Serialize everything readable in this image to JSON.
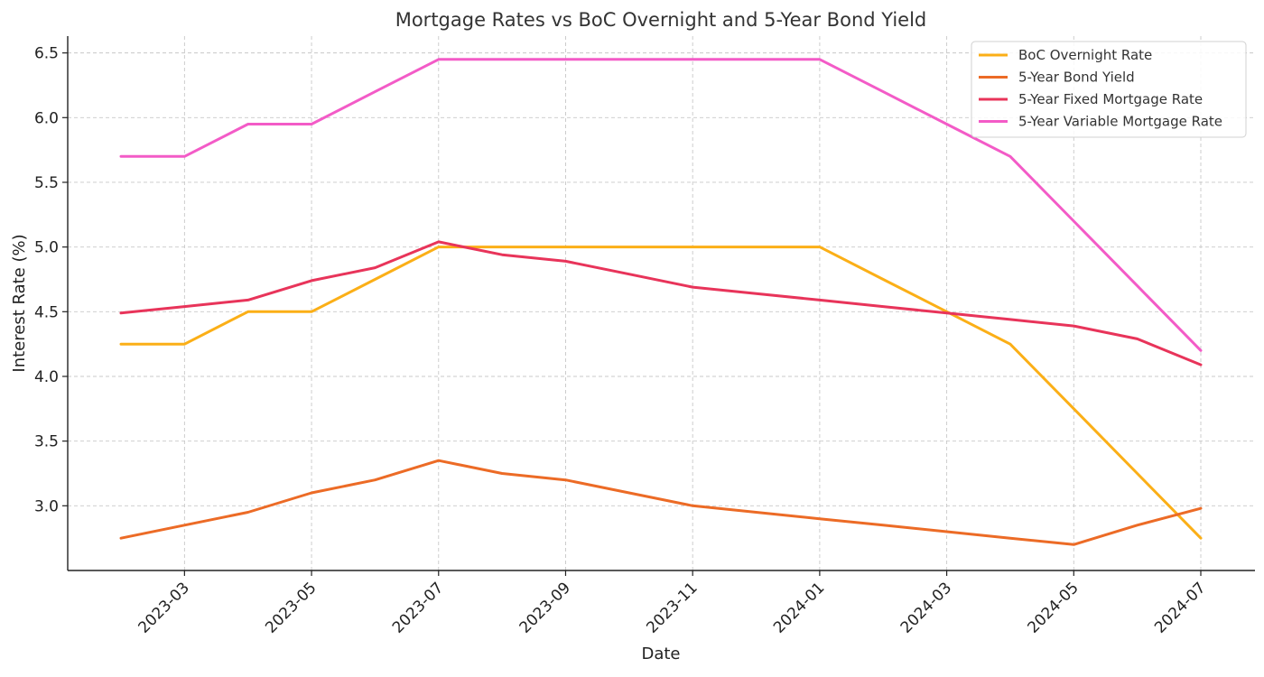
{
  "chart_data": {
    "type": "line",
    "title": "Mortgage Rates vs BoC Overnight and 5-Year Bond Yield",
    "xlabel": "Date",
    "ylabel": "Interest Rate (%)",
    "x": [
      "2023-02",
      "2023-03",
      "2023-04",
      "2023-05",
      "2023-06",
      "2023-07",
      "2023-08",
      "2023-09",
      "2023-10",
      "2023-11",
      "2023-12",
      "2024-01",
      "2024-02",
      "2024-03",
      "2024-04",
      "2024-05",
      "2024-06",
      "2024-07"
    ],
    "x_ticks": [
      "2023-03",
      "2023-05",
      "2023-07",
      "2023-09",
      "2023-11",
      "2024-01",
      "2024-03",
      "2024-05",
      "2024-07"
    ],
    "y_ticks": [
      "3.0",
      "3.5",
      "4.0",
      "4.5",
      "5.0",
      "5.5",
      "6.0",
      "6.5"
    ],
    "ylim": [
      2.5,
      6.63
    ],
    "grid": true,
    "legend_position": "top-right",
    "series": [
      {
        "name": "BoC Overnight Rate",
        "color": "#fbaf17",
        "values": [
          4.25,
          4.25,
          4.5,
          4.5,
          4.75,
          5.0,
          5.0,
          5.0,
          5.0,
          5.0,
          5.0,
          5.0,
          4.75,
          4.5,
          4.25,
          3.75,
          3.25,
          2.75
        ]
      },
      {
        "name": "5-Year Bond Yield",
        "color": "#ec6b26",
        "values": [
          2.75,
          2.85,
          2.95,
          3.1,
          3.2,
          3.35,
          3.25,
          3.2,
          3.1,
          3.0,
          2.95,
          2.9,
          2.85,
          2.8,
          2.75,
          2.7,
          2.85,
          2.98
        ]
      },
      {
        "name": "5-Year Fixed Mortgage Rate",
        "color": "#e8345a",
        "values": [
          4.49,
          4.54,
          4.59,
          4.74,
          4.84,
          5.04,
          4.94,
          4.89,
          4.79,
          4.69,
          4.64,
          4.59,
          4.54,
          4.49,
          4.44,
          4.39,
          4.29,
          4.09
        ]
      },
      {
        "name": "5-Year Variable Mortgage Rate",
        "color": "#f35bc7",
        "values": [
          5.7,
          5.7,
          5.95,
          5.95,
          6.2,
          6.45,
          6.45,
          6.45,
          6.45,
          6.45,
          6.45,
          6.45,
          6.2,
          5.95,
          5.7,
          5.2,
          4.7,
          4.2
        ]
      }
    ]
  }
}
